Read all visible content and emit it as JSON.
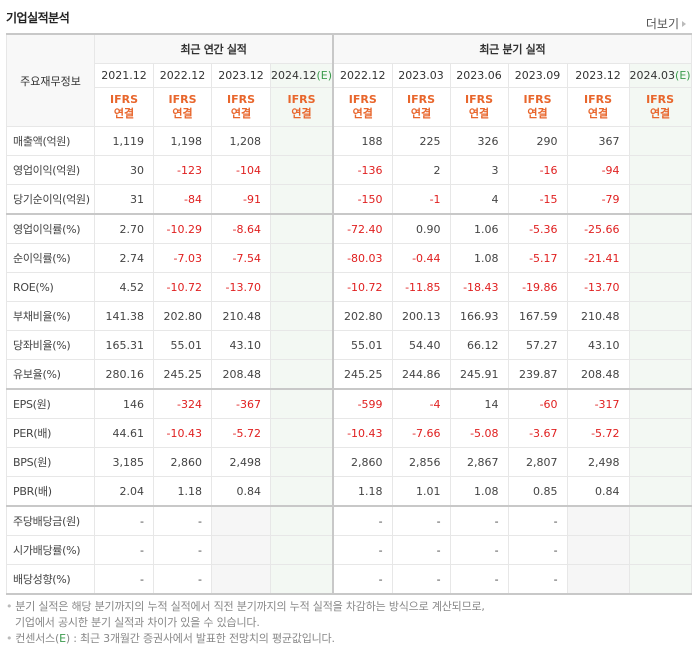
{
  "header": {
    "title": "기업실적분석",
    "more_label": "더보기"
  },
  "table": {
    "label_header": "주요재무정보",
    "group_annual": "최근 연간 실적",
    "group_quarter": "최근 분기 실적",
    "periods_annual": [
      "2021.12",
      "2022.12",
      "2023.12",
      "2024.12"
    ],
    "periods_quarter": [
      "2022.12",
      "2023.03",
      "2023.06",
      "2023.09",
      "2023.12",
      "2024.03"
    ],
    "estimate_mark": "(E)",
    "ifrs_top": "IFRS",
    "ifrs_bottom": "연결",
    "rows": [
      {
        "label": "매출액(억원)",
        "annual": [
          "1,119",
          "1,198",
          "1,208",
          ""
        ],
        "quarter": [
          "188",
          "225",
          "326",
          "290",
          "367",
          ""
        ]
      },
      {
        "label": "영업이익(억원)",
        "annual": [
          "30",
          "-123",
          "-104",
          ""
        ],
        "quarter": [
          "-136",
          "2",
          "3",
          "-16",
          "-94",
          ""
        ]
      },
      {
        "label": "당기순이익(억원)",
        "annual": [
          "31",
          "-84",
          "-91",
          ""
        ],
        "quarter": [
          "-150",
          "-1",
          "4",
          "-15",
          "-79",
          ""
        ]
      },
      {
        "label": "영업이익률(%)",
        "annual": [
          "2.70",
          "-10.29",
          "-8.64",
          ""
        ],
        "quarter": [
          "-72.40",
          "0.90",
          "1.06",
          "-5.36",
          "-25.66",
          ""
        ]
      },
      {
        "label": "순이익률(%)",
        "annual": [
          "2.74",
          "-7.03",
          "-7.54",
          ""
        ],
        "quarter": [
          "-80.03",
          "-0.44",
          "1.08",
          "-5.17",
          "-21.41",
          ""
        ]
      },
      {
        "label": "ROE(%)",
        "annual": [
          "4.52",
          "-10.72",
          "-13.70",
          ""
        ],
        "quarter": [
          "-10.72",
          "-11.85",
          "-18.43",
          "-19.86",
          "-13.70",
          ""
        ]
      },
      {
        "label": "부채비율(%)",
        "annual": [
          "141.38",
          "202.80",
          "210.48",
          ""
        ],
        "quarter": [
          "202.80",
          "200.13",
          "166.93",
          "167.59",
          "210.48",
          ""
        ]
      },
      {
        "label": "당좌비율(%)",
        "annual": [
          "165.31",
          "55.01",
          "43.10",
          ""
        ],
        "quarter": [
          "55.01",
          "54.40",
          "66.12",
          "57.27",
          "43.10",
          ""
        ]
      },
      {
        "label": "유보율(%)",
        "annual": [
          "280.16",
          "245.25",
          "208.48",
          ""
        ],
        "quarter": [
          "245.25",
          "244.86",
          "245.91",
          "239.87",
          "208.48",
          ""
        ]
      },
      {
        "label": "EPS(원)",
        "annual": [
          "146",
          "-324",
          "-367",
          ""
        ],
        "quarter": [
          "-599",
          "-4",
          "14",
          "-60",
          "-317",
          ""
        ]
      },
      {
        "label": "PER(배)",
        "annual": [
          "44.61",
          "-10.43",
          "-5.72",
          ""
        ],
        "quarter": [
          "-10.43",
          "-7.66",
          "-5.08",
          "-3.67",
          "-5.72",
          ""
        ]
      },
      {
        "label": "BPS(원)",
        "annual": [
          "3,185",
          "2,860",
          "2,498",
          ""
        ],
        "quarter": [
          "2,860",
          "2,856",
          "2,867",
          "2,807",
          "2,498",
          ""
        ]
      },
      {
        "label": "PBR(배)",
        "annual": [
          "2.04",
          "1.18",
          "0.84",
          ""
        ],
        "quarter": [
          "1.18",
          "1.01",
          "1.08",
          "0.85",
          "0.84",
          ""
        ]
      },
      {
        "label": "주당배당금(원)",
        "annual": [
          "-",
          "-",
          "",
          ""
        ],
        "quarter": [
          "-",
          "-",
          "-",
          "-",
          "",
          ""
        ]
      },
      {
        "label": "시가배당률(%)",
        "annual": [
          "-",
          "-",
          "",
          ""
        ],
        "quarter": [
          "-",
          "-",
          "-",
          "-",
          "",
          ""
        ]
      },
      {
        "label": "배당성향(%)",
        "annual": [
          "-",
          "-",
          "",
          ""
        ],
        "quarter": [
          "-",
          "-",
          "-",
          "-",
          "",
          ""
        ]
      }
    ]
  },
  "notes": {
    "line1": "분기 실적은 해당 분기까지의 누적 실적에서 직전 분기까지의 누적 실적을 차감하는 방식으로 계산되므로,",
    "line2": "기업에서 공시한 분기 실적과 차이가 있을 수 있습니다.",
    "line3_prefix": "컨센서스(",
    "line3_e": "E",
    "line3_suffix": ") : 최근 3개월간 증권사에서 발표한 전망치의 평균값입니다."
  },
  "colors": {
    "negative": "#e02020",
    "ifrs": "#e8662c",
    "estimate_mark": "#3b9b4d",
    "estimate_bg": "#f3f8f3"
  }
}
